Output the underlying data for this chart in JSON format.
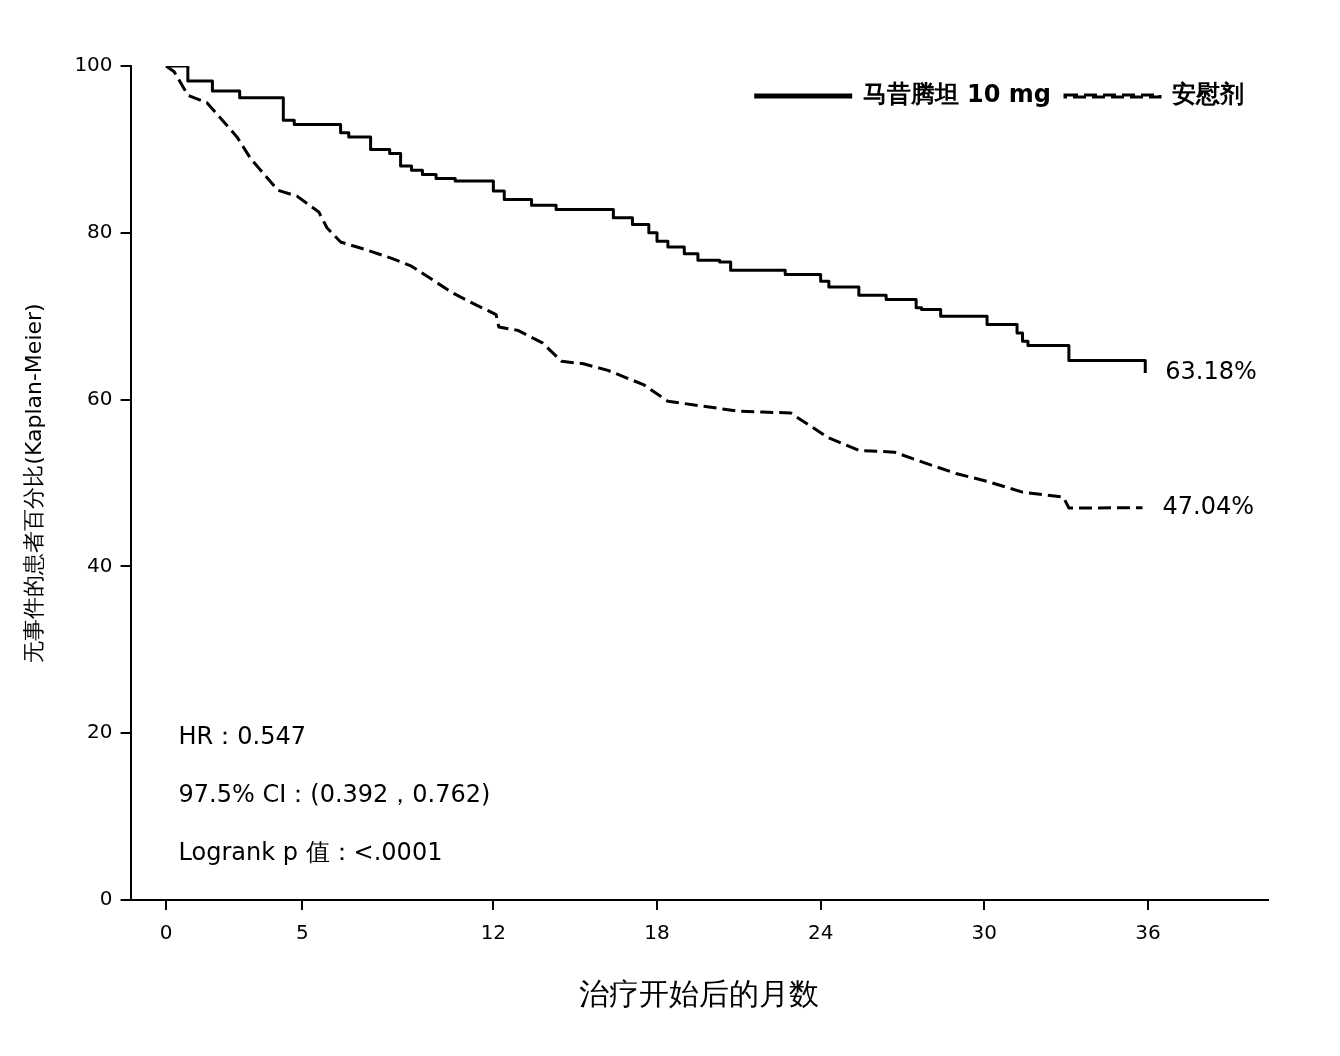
{
  "chart_data": {
    "type": "line",
    "xlabel": "治疗开始后的月数",
    "ylabel": "无事件的患者百分比(Kaplan-Meier)",
    "xlim": [
      -1.3,
      40.4
    ],
    "ylim": [
      0,
      100
    ],
    "xticks": [
      0,
      5,
      12,
      18,
      24,
      30,
      36
    ],
    "yticks": [
      0,
      20,
      40,
      60,
      80,
      100
    ],
    "legend": "top right",
    "series": [
      {
        "name": "马昔腾坦 10 mg",
        "type": "step",
        "line_style": "solid",
        "color": "#000000",
        "x": [
          0,
          0.8,
          1.7,
          2.7,
          4.3,
          4.7,
          6.4,
          6.7,
          7.5,
          8.2,
          8.6,
          9.0,
          9.4,
          9.9,
          10.6,
          12.0,
          12.4,
          13.4,
          14.3,
          16.4,
          17.1,
          17.7,
          18.0,
          18.4,
          19.0,
          19.5,
          20.3,
          20.7,
          22.7,
          24.0,
          24.3,
          25.4,
          26.4,
          27.5,
          27.7,
          28.4,
          30.1,
          31.2,
          31.4,
          31.6,
          33.1,
          35.9,
          35.9
        ],
        "values": [
          100,
          98.2,
          97,
          96.2,
          93.5,
          93,
          92,
          91.5,
          90,
          89.5,
          88,
          87.5,
          87,
          86.5,
          86.2,
          85,
          84,
          83.3,
          82.8,
          81.8,
          81,
          80,
          79,
          78.3,
          77.5,
          76.7,
          76.5,
          75.5,
          75,
          74.2,
          73.5,
          72.5,
          72,
          71,
          70.8,
          70,
          69,
          68,
          67,
          66.5,
          64.7,
          64.7,
          63.18
        ]
      },
      {
        "name": "安慰剂",
        "type": "line",
        "line_style": "dashed",
        "color": "#000000",
        "x": [
          0,
          0.3,
          0.8,
          1.5,
          2.6,
          3.1,
          3.6,
          4.1,
          4.8,
          5.6,
          5.9,
          6.4,
          7.3,
          8.3,
          9.0,
          9.8,
          10.5,
          11.4,
          12.1,
          12.2,
          12.9,
          13.8,
          14.5,
          15.3,
          16.2,
          17.5,
          18.4,
          19.5,
          21.0,
          22.9,
          23.4,
          24.3,
          25.4,
          26.7,
          28.0,
          29.0,
          30.1,
          31.4,
          32.9,
          33.1,
          35.8
        ],
        "values": [
          100,
          99.3,
          96.5,
          95.6,
          91.5,
          88.9,
          87,
          85.1,
          84.4,
          82.5,
          80.6,
          78.9,
          78,
          76.9,
          76,
          74.3,
          72.8,
          71.3,
          70.2,
          68.7,
          68.3,
          66.8,
          64.6,
          64.3,
          63.5,
          61.8,
          59.8,
          59.3,
          58.6,
          58.4,
          57.3,
          55.4,
          53.9,
          53.7,
          52.2,
          51.1,
          50.2,
          48.9,
          48.3,
          47.0,
          47.04
        ]
      }
    ],
    "annotations": [
      {
        "text": "63.18%",
        "x": 35.9,
        "y": 63.18
      },
      {
        "text": "47.04%",
        "x": 35.8,
        "y": 47.04
      },
      "HR：0.547",
      "97.5% CI：(0.392，0.762)",
      "Logrank p 值：<.0001"
    ]
  }
}
